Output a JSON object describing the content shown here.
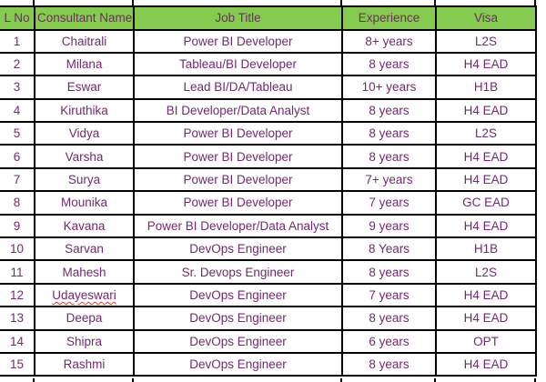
{
  "colors": {
    "header_bg": "#85CB4F",
    "grid_border": "#000000",
    "text": "#732870",
    "page_bg": "#FFFFFF",
    "spellcheck_underline": "#E0412E"
  },
  "table": {
    "columns": [
      "L No",
      "Consultant Name",
      "Job Title",
      "Experience",
      "Visa"
    ],
    "rows": [
      {
        "no": "1",
        "name": "Chaitrali",
        "job": "Power BI Developer",
        "experience": "8+ years",
        "visa": "L2S",
        "name_spellcheck": false
      },
      {
        "no": "2",
        "name": "Milana",
        "job": "Tableau/BI Developer",
        "experience": "8 years",
        "visa": "H4 EAD",
        "name_spellcheck": false
      },
      {
        "no": "3",
        "name": "Eswar",
        "job": "Lead BI/DA/Tableau",
        "experience": "10+ years",
        "visa": "H1B",
        "name_spellcheck": false
      },
      {
        "no": "4",
        "name": "Kiruthika",
        "job": "BI Developer/Data Analyst",
        "experience": "8 years",
        "visa": "H4 EAD",
        "name_spellcheck": false
      },
      {
        "no": "5",
        "name": "Vidya",
        "job": "Power BI Developer",
        "experience": "8 years",
        "visa": "L2S",
        "name_spellcheck": false
      },
      {
        "no": "6",
        "name": "Varsha",
        "job": "Power BI Developer",
        "experience": "8 years",
        "visa": "H4 EAD",
        "name_spellcheck": false
      },
      {
        "no": "7",
        "name": "Surya",
        "job": "Power BI Developer",
        "experience": "7+ years",
        "visa": "H4 EAD",
        "name_spellcheck": false
      },
      {
        "no": "8",
        "name": "Mounika",
        "job": "Power BI Developer",
        "experience": "7 years",
        "visa": "GC EAD",
        "name_spellcheck": false
      },
      {
        "no": "9",
        "name": "Kavana",
        "job": "Power BI Developer/Data Analyst",
        "experience": "9 years",
        "visa": "H4 EAD",
        "name_spellcheck": false
      },
      {
        "no": "10",
        "name": "Sarvan",
        "job": "DevOps Engineer",
        "experience": "8 Years",
        "visa": "H1B",
        "name_spellcheck": false
      },
      {
        "no": "11",
        "name": "Mahesh",
        "job": "Sr. Devops Engineer",
        "experience": "8 years",
        "visa": "L2S",
        "name_spellcheck": false
      },
      {
        "no": "12",
        "name": "Udayeswari",
        "job": "DevOps Engineer",
        "experience": "7 years",
        "visa": "H4 EAD",
        "name_spellcheck": true
      },
      {
        "no": "13",
        "name": "Deepa",
        "job": "DevOps Engineer",
        "experience": "8 years",
        "visa": "H4 EAD",
        "name_spellcheck": false
      },
      {
        "no": "14",
        "name": "Shipra",
        "job": "DevOps Engineer",
        "experience": "6 years",
        "visa": "OPT",
        "name_spellcheck": false
      },
      {
        "no": "15",
        "name": "Rashmi",
        "job": "DevOps Engineer",
        "experience": "8 years",
        "visa": "H4 EAD",
        "name_spellcheck": false
      }
    ]
  }
}
